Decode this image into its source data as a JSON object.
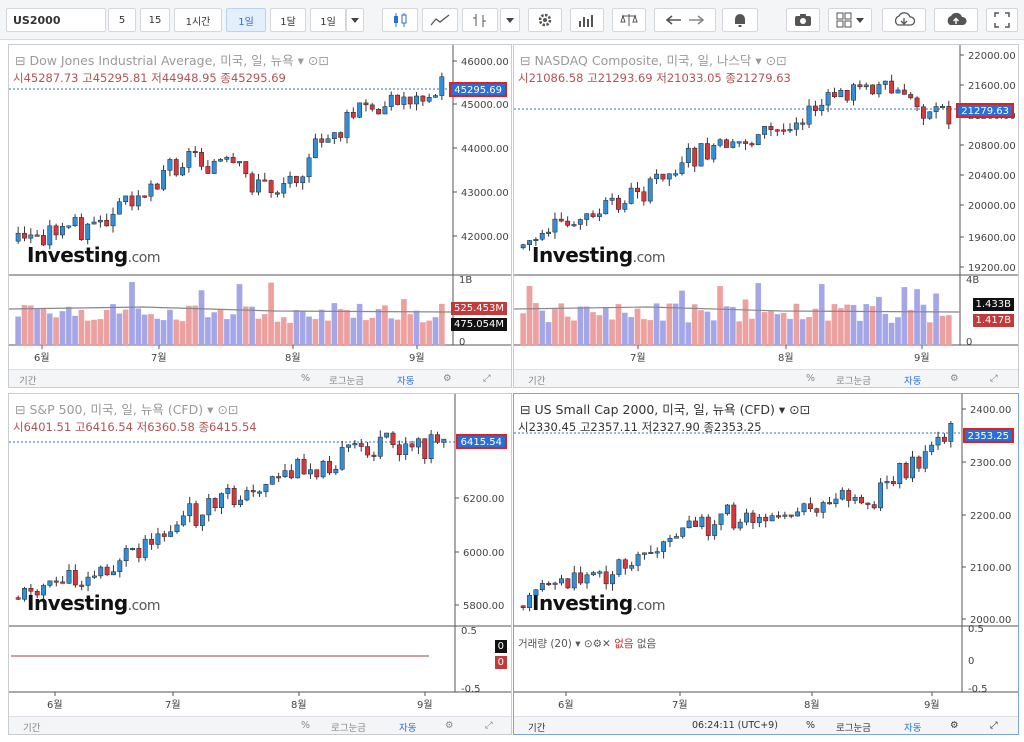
{
  "toolbar": {
    "symbol": "US2000",
    "intervals": [
      "5",
      "15",
      "1시간",
      "1일",
      "1달",
      "1일"
    ],
    "active_interval_index": 3
  },
  "panes": [
    {
      "title": "Dow Jones Industrial Average, 미국, 일, 뉴욕",
      "ohlc": {
        "o_label": "시",
        "o": "45287.73",
        "h_label": "고",
        "h": "45295.81",
        "l_label": "저",
        "l": "44948.95",
        "c_label": "종",
        "c": "45295.69"
      },
      "price_tag": "45295.69",
      "y_labels": [
        "46000.00",
        "45000.00",
        "44000.00",
        "43000.00",
        "42000.00"
      ],
      "vol_labels": [
        "1B",
        "0"
      ],
      "vol_tags": [
        "525.453M",
        "475.054M"
      ],
      "x_labels": [
        "6월",
        "7월",
        "8월",
        "9월"
      ],
      "footer": {
        "range": "기간",
        "pct": "%",
        "log": "로그눈금",
        "auto": "자동"
      }
    },
    {
      "title": "NASDAQ Composite, 미국, 일, 나스닥",
      "ohlc": {
        "o_label": "시",
        "o": "21086.58",
        "h_label": "고",
        "h": "21293.69",
        "l_label": "저",
        "l": "21033.05",
        "c_label": "종",
        "c": "21279.63"
      },
      "price_tag": "21279.63",
      "y_labels": [
        "22000.00",
        "21600.00",
        "21200.00",
        "20800.00",
        "20400.00",
        "20000.00",
        "19600.00",
        "19200.00"
      ],
      "vol_labels": [
        "4B",
        "0"
      ],
      "vol_tags": [
        "1.433B",
        "1.417B"
      ],
      "x_labels": [
        "7월",
        "8월",
        "9월"
      ],
      "footer": {
        "range": "기간",
        "pct": "%",
        "log": "로그눈금",
        "auto": "자동"
      }
    },
    {
      "title": "S&P 500, 미국, 일, 뉴욕 (CFD)",
      "ohlc": {
        "o_label": "시",
        "o": "6401.51",
        "h_label": "고",
        "h": "6416.54",
        "l_label": "저",
        "l": "6360.58",
        "c_label": "종",
        "c": "6415.54"
      },
      "price_tag": "6415.54",
      "y_labels": [
        "6200.00",
        "6000.00",
        "5800.00"
      ],
      "vol_labels": [
        "0.5",
        "-0.5"
      ],
      "vol_tags": [
        "0",
        "0"
      ],
      "x_labels": [
        "6월",
        "7월",
        "8월",
        "9월"
      ],
      "footer": {
        "range": "기간",
        "pct": "%",
        "log": "로그눈금",
        "auto": "자동"
      }
    },
    {
      "title": "US Small Cap 2000, 미국, 일, 뉴욕 (CFD)",
      "ohlc": {
        "o_label": "시",
        "o": "2330.45",
        "h_label": "고",
        "h": "2357.11",
        "l_label": "저",
        "l": "2327.90",
        "c_label": "종",
        "c": "2353.25"
      },
      "price_tag": "2353.25",
      "y_labels": [
        "2400.00",
        "2300.00",
        "2200.00",
        "2100.00",
        "2000.00"
      ],
      "vol_labels": [
        "0.5",
        "0",
        "-0.5"
      ],
      "volume_legend": {
        "name": "거래량 (20)",
        "v1": "없음",
        "v2": "없음"
      },
      "x_labels": [
        "6월",
        "7월",
        "8월",
        "9월"
      ],
      "footer": {
        "range": "기간",
        "time": "06:24:11 (UTC+9)",
        "pct": "%",
        "log": "로그눈금",
        "auto": "자동"
      }
    }
  ],
  "logo": {
    "brand": "Investing",
    "suffix": ".com"
  },
  "colors": {
    "up": "#2f8fd8",
    "down": "#d7373b",
    "accent": "#2a6fd6"
  }
}
